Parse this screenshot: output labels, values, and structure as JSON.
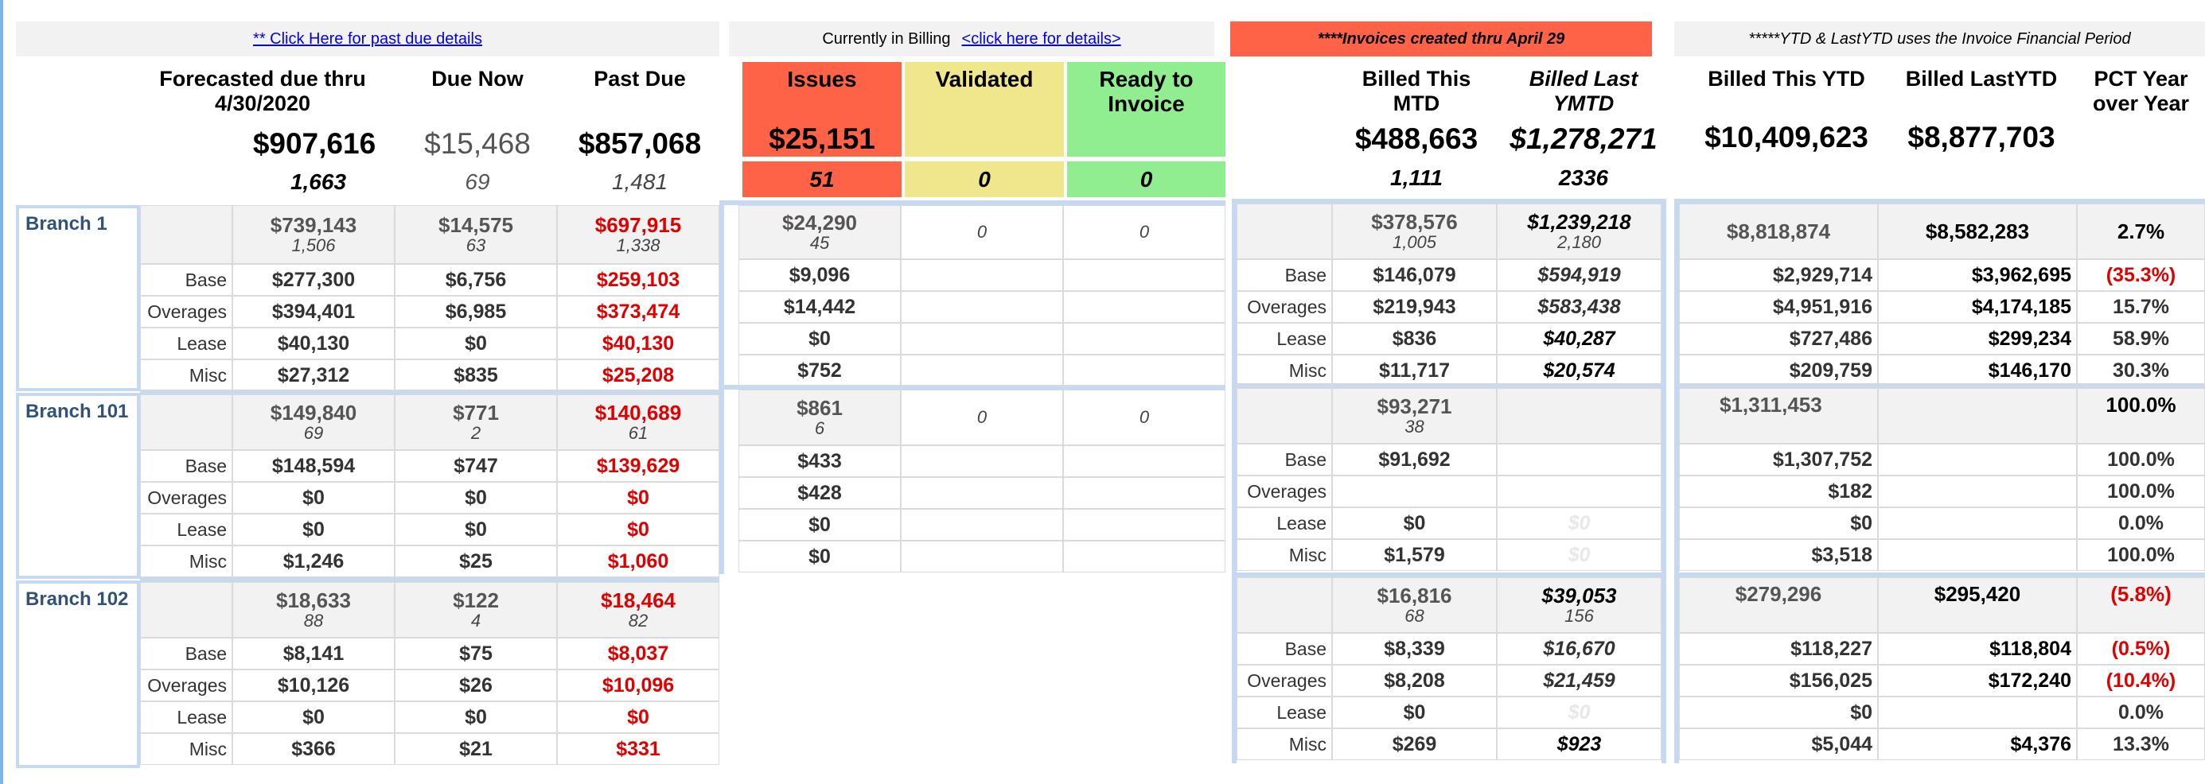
{
  "top": {
    "past_due_link": "** Click Here for past due details",
    "billing_text": "Currently in Billing",
    "billing_link": "<click here for details>",
    "invoices_text": "****Invoices created thru  April 29",
    "ytd_text": "*****YTD & LastYTD uses the Invoice Financial Period"
  },
  "colors": {
    "issues": "#ff6347",
    "validated": "#f0e68c",
    "ready": "#90ee90",
    "separator": "#c6d9f0",
    "negative": "#e00000"
  },
  "headers": {
    "forecast": "Forecasted due thru 4/30/2020",
    "due_now": "Due Now",
    "past_due": "Past Due",
    "issues": "Issues",
    "validated": "Validated",
    "ready": "Ready to Invoice",
    "billed_mtd": "Billed This MTD",
    "billed_last_ymtd": "Billed Last YMTD",
    "billed_ytd": "Billed This YTD",
    "billed_lastytd": "Billed LastYTD",
    "pct": "PCT Year over Year"
  },
  "totals": {
    "forecast": "$907,616",
    "due_now": "$15,468",
    "past_due": "$857,068",
    "forecast_cnt": "1,663",
    "due_now_cnt": "69",
    "past_due_cnt": "1,481",
    "issues": "$25,151",
    "issues_cnt": "51",
    "validated_cnt": "0",
    "ready_cnt": "0",
    "billed_mtd": "$488,663",
    "billed_last_ymtd": "$1,278,271",
    "billed_mtd_cnt": "1,111",
    "billed_last_ymtd_cnt": "2336",
    "billed_ytd": "$10,409,623",
    "billed_lastytd": "$8,877,703"
  },
  "categories": [
    "Base",
    "Overages",
    "Lease",
    "Misc"
  ],
  "branches": [
    {
      "name": "Branch 1",
      "sum": {
        "forecast": "$739,143",
        "forecast_cnt": "1,506",
        "due": "$14,575",
        "due_cnt": "63",
        "past": "$697,915",
        "past_cnt": "1,338",
        "issues": "$24,290",
        "issues_cnt": "45",
        "validated": "0",
        "ready": "0",
        "mtd": "$378,576",
        "mtd_cnt": "1,005",
        "lymtd": "$1,239,218",
        "lymtd_cnt": "2,180",
        "ytd": "$8,818,874",
        "lytd": "$8,582,283",
        "pct": "2.7%"
      },
      "rows": [
        {
          "forecast": "$277,300",
          "due": "$6,756",
          "past": "$259,103",
          "issues": "$9,096",
          "mtd": "$146,079",
          "lymtd": "$594,919",
          "ytd": "$2,929,714",
          "lytd": "$3,962,695",
          "pct": "(35.3%)"
        },
        {
          "forecast": "$394,401",
          "due": "$6,985",
          "past": "$373,474",
          "issues": "$14,442",
          "mtd": "$219,943",
          "lymtd": "$583,438",
          "ytd": "$4,951,916",
          "lytd": "$4,174,185",
          "pct": "15.7%"
        },
        {
          "forecast": "$40,130",
          "due": "$0",
          "past": "$40,130",
          "issues": "$0",
          "mtd": "$836",
          "lymtd": "$40,287",
          "ytd": "$727,486",
          "lytd": "$299,234",
          "pct": "58.9%"
        },
        {
          "forecast": "$27,312",
          "due": "$835",
          "past": "$25,208",
          "issues": "$752",
          "mtd": "$11,717",
          "lymtd": "$20,574",
          "ytd": "$209,759",
          "lytd": "$146,170",
          "pct": "30.3%"
        }
      ]
    },
    {
      "name": "Branch 101",
      "sum": {
        "forecast": "$149,840",
        "forecast_cnt": "69",
        "due": "$771",
        "due_cnt": "2",
        "past": "$140,689",
        "past_cnt": "61",
        "issues": "$861",
        "issues_cnt": "6",
        "validated": "0",
        "ready": "0",
        "mtd": "$93,271",
        "mtd_cnt": "38",
        "lymtd": "",
        "lymtd_cnt": "",
        "ytd": "$1,311,453",
        "lytd": "",
        "pct": "100.0%"
      },
      "rows": [
        {
          "forecast": "$148,594",
          "due": "$747",
          "past": "$139,629",
          "issues": "$433",
          "mtd": "$91,692",
          "lymtd": "",
          "ytd": "$1,307,752",
          "lytd": "",
          "pct": "100.0%"
        },
        {
          "forecast": "$0",
          "due": "$0",
          "past": "$0",
          "issues": "$428",
          "mtd": "",
          "lymtd": "",
          "ytd": "$182",
          "lytd": "",
          "pct": "100.0%"
        },
        {
          "forecast": "$0",
          "due": "$0",
          "past": "$0",
          "issues": "$0",
          "mtd": "$0",
          "lymtd": "$0",
          "ytd": "$0",
          "lytd": "",
          "pct": "0.0%"
        },
        {
          "forecast": "$1,246",
          "due": "$25",
          "past": "$1,060",
          "issues": "$0",
          "mtd": "$1,579",
          "lymtd": "$0",
          "ytd": "$3,518",
          "lytd": "",
          "pct": "100.0%"
        }
      ]
    },
    {
      "name": "Branch 102",
      "sum": {
        "forecast": "$18,633",
        "forecast_cnt": "88",
        "due": "$122",
        "due_cnt": "4",
        "past": "$18,464",
        "past_cnt": "82",
        "mtd": "$16,816",
        "mtd_cnt": "68",
        "lymtd": "$39,053",
        "lymtd_cnt": "156",
        "ytd": "$279,296",
        "lytd": "$295,420",
        "pct": "(5.8%)"
      },
      "rows": [
        {
          "forecast": "$8,141",
          "due": "$75",
          "past": "$8,037",
          "mtd": "$8,339",
          "lymtd": "$16,670",
          "ytd": "$118,227",
          "lytd": "$118,804",
          "pct": "(0.5%)"
        },
        {
          "forecast": "$10,126",
          "due": "$26",
          "past": "$10,096",
          "mtd": "$8,208",
          "lymtd": "$21,459",
          "ytd": "$156,025",
          "lytd": "$172,240",
          "pct": "(10.4%)"
        },
        {
          "forecast": "$0",
          "due": "$0",
          "past": "$0",
          "mtd": "$0",
          "lymtd": "$0",
          "ytd": "$0",
          "lytd": "",
          "pct": "0.0%"
        },
        {
          "forecast": "$366",
          "due": "$21",
          "past": "$331",
          "mtd": "$269",
          "lymtd": "$923",
          "ytd": "$5,044",
          "lytd": "$4,376",
          "pct": "13.3%"
        }
      ]
    }
  ]
}
